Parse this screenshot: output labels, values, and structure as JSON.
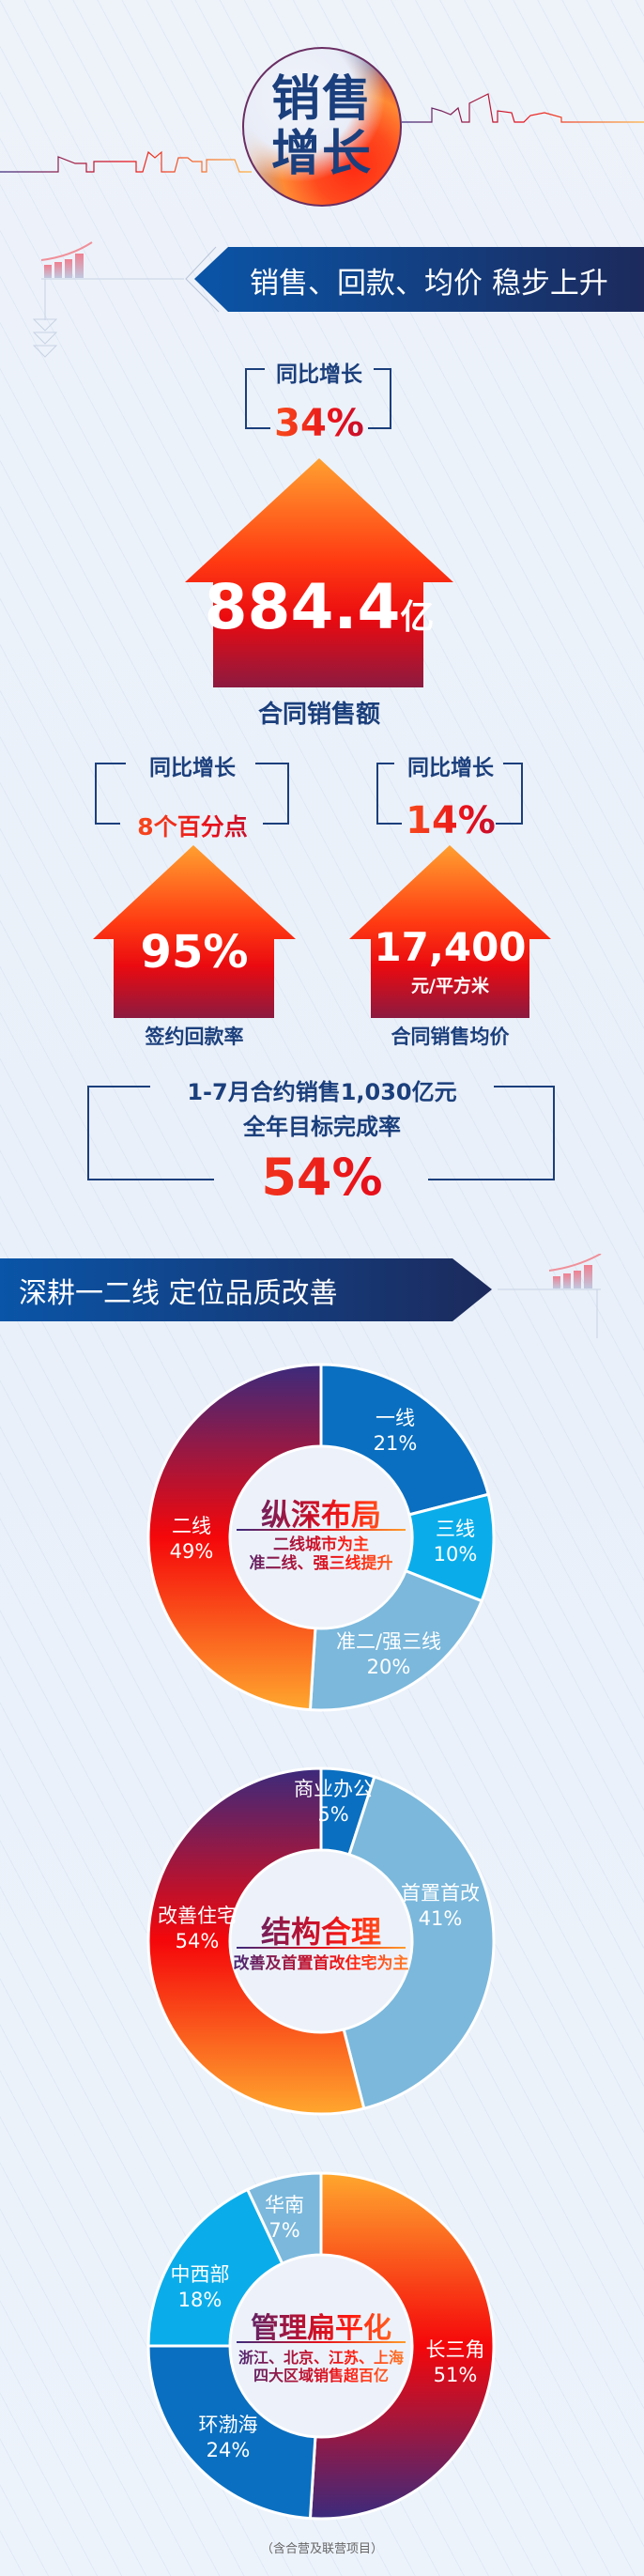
{
  "header": {
    "title_line1": "销售",
    "title_line2": "增长"
  },
  "section1": {
    "banner": "销售、回款、均价 稳步上升",
    "main": {
      "yoy_label": "同比增长",
      "yoy_value": "34%",
      "value": "884.4",
      "unit": "亿",
      "caption": "合同销售额"
    },
    "left": {
      "yoy_label": "同比增长",
      "yoy_value": "8个百分点",
      "value": "95%",
      "caption": "签约回款率"
    },
    "right": {
      "yoy_label": "同比增长",
      "yoy_value": "14%",
      "value": "17,400",
      "unit": "元/平方米",
      "caption": "合同销售均价"
    },
    "target": {
      "line1": "1-7月合约销售1,030亿元",
      "line2": "全年目标完成率",
      "value": "54%"
    }
  },
  "section2": {
    "banner": "深耕一二线 定位品质改善"
  },
  "colors": {
    "navy": "#1b3f7c",
    "blue": "#0a6fc0",
    "sky": "#0aadea",
    "light_blue": "#7bb8dc",
    "red": "#f20a0a",
    "orange": "#ffa030",
    "purple": "#3b2a7c"
  },
  "chart_data": [
    {
      "type": "pie",
      "donut": true,
      "title": "纵深布局",
      "subtitle": [
        "二线城市为主",
        "准二线、强三线提升"
      ],
      "categories": [
        "一线",
        "三线",
        "准二/强三线",
        "二线"
      ],
      "values": [
        21,
        10,
        20,
        49
      ],
      "labels": [
        "21%",
        "10%",
        "20%",
        "49%"
      ],
      "colors": [
        "#0a6fc0",
        "#0aadea",
        "#7bb8dc",
        "gradient-purple-red-orange"
      ]
    },
    {
      "type": "pie",
      "donut": true,
      "title": "结构合理",
      "subtitle": [
        "改善及首置首改住宅为主"
      ],
      "categories": [
        "商业办公",
        "首置首改",
        "改善住宅"
      ],
      "values": [
        5,
        41,
        54
      ],
      "labels": [
        "5%",
        "41%",
        "54%"
      ],
      "colors": [
        "#0a6fc0",
        "#7bb8dc",
        "gradient-purple-red-orange"
      ]
    },
    {
      "type": "pie",
      "donut": true,
      "title": "管理扁平化",
      "subtitle": [
        "浙江、北京、江苏、上海",
        "四大区域销售超百亿"
      ],
      "categories": [
        "长三角",
        "环渤海",
        "中西部",
        "华南"
      ],
      "values": [
        51,
        24,
        18,
        7
      ],
      "labels": [
        "51%",
        "24%",
        "18%",
        "7%"
      ],
      "colors": [
        "gradient-orange-red-purple",
        "#0a6fc0",
        "#0aadea",
        "#7bb8dc"
      ]
    }
  ],
  "footnote": "（含合营及联营项目）"
}
